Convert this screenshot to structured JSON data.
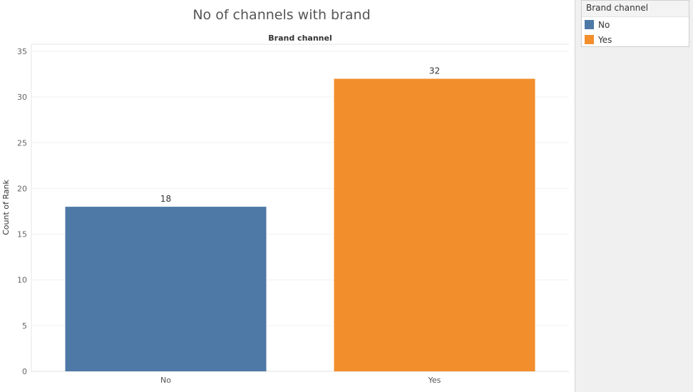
{
  "chart_data": {
    "type": "bar",
    "title": "No of channels with brand",
    "header": "Brand channel",
    "ylabel": "Count of Rank",
    "xlabel": "",
    "ylim": [
      0,
      35
    ],
    "yticks": [
      0,
      5,
      10,
      15,
      20,
      25,
      30,
      35
    ],
    "categories": [
      "No",
      "Yes"
    ],
    "values": [
      18,
      32
    ],
    "data_labels": [
      "18",
      "32"
    ],
    "colors": [
      "#4e79a7",
      "#f28e2b"
    ],
    "grid": true,
    "legend_position": "top-right"
  },
  "legend": {
    "title": "Brand channel",
    "items": [
      {
        "label": "No",
        "color": "#4e79a7"
      },
      {
        "label": "Yes",
        "color": "#f28e2b"
      }
    ]
  }
}
